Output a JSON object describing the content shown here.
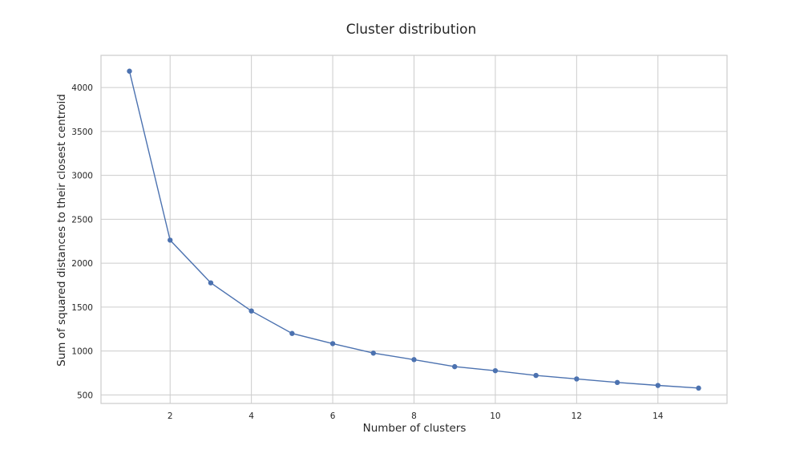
{
  "chart_data": {
    "type": "line",
    "title": "Cluster distribution",
    "xlabel": "Number of clusters",
    "ylabel": "Sum of squared distances to their closest centroid",
    "xlim": [
      0.3,
      15.7
    ],
    "ylim": [
      403,
      4366
    ],
    "xticks": [
      2,
      4,
      6,
      8,
      10,
      12,
      14
    ],
    "yticks": [
      500,
      1000,
      1500,
      2000,
      2500,
      3000,
      3500,
      4000
    ],
    "grid": true,
    "series": [
      {
        "color": "#4c72b0",
        "marker": "circle",
        "x": [
          1,
          2,
          3,
          4,
          5,
          6,
          7,
          8,
          9,
          10,
          11,
          12,
          13,
          14,
          15
        ],
        "y": [
          4186,
          2262,
          1776,
          1456,
          1200,
          1084,
          976,
          902,
          822,
          776,
          722,
          682,
          642,
          608,
          578
        ]
      }
    ]
  }
}
